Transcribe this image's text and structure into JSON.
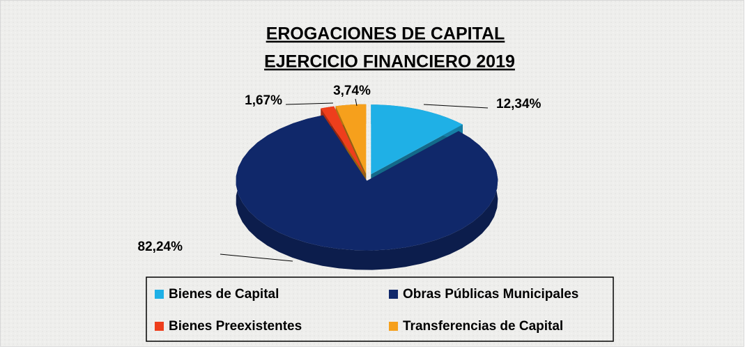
{
  "chart_data": {
    "type": "pie3d",
    "title": [
      "EROGACIONES DE CAPITAL",
      "EJERCICIO FINANCIERO 2019"
    ],
    "categories": [
      "Bienes de Capital",
      "Obras Públicas Municipales",
      "Bienes Preexistentes",
      "Transferencias de Capital"
    ],
    "values": [
      12.34,
      82.24,
      1.67,
      3.74
    ],
    "value_labels": [
      "12,34%",
      "82,24%",
      "1,67%",
      "3,74%"
    ],
    "colors": [
      "#1fb0e6",
      "#10286a",
      "#ee3e1c",
      "#f6a01c"
    ]
  }
}
